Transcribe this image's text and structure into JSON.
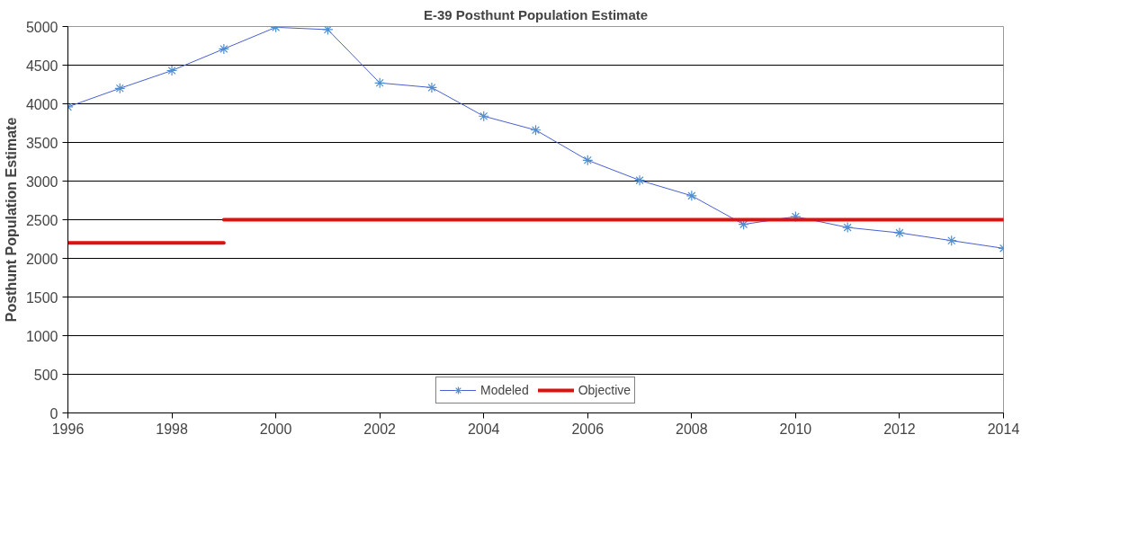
{
  "chart_data": {
    "type": "line",
    "title": "E-39 Posthunt Population Estimate",
    "ylabel": "Posthunt Population Estimate",
    "xlim": [
      1996,
      2014
    ],
    "xticks": [
      1996,
      1998,
      2000,
      2002,
      2004,
      2006,
      2008,
      2010,
      2012,
      2014
    ],
    "ylim": [
      0,
      5000
    ],
    "yticks": [
      0,
      500,
      1000,
      1500,
      2000,
      2500,
      3000,
      3500,
      4000,
      4500,
      5000
    ],
    "grid": "y",
    "legend": "bottom",
    "series": [
      {
        "name": "Modeled",
        "color": "#4a5fd0",
        "marker": "cross",
        "x": [
          1996,
          1997,
          1998,
          1999,
          2000,
          2001,
          2002,
          2003,
          2004,
          2005,
          2006,
          2007,
          2008,
          2009,
          2010,
          2011,
          2012,
          2013,
          2014
        ],
        "values": [
          3960,
          4200,
          4430,
          4710,
          4990,
          4960,
          4270,
          4210,
          3840,
          3660,
          3270,
          3010,
          2810,
          2440,
          2540,
          2400,
          2330,
          2230,
          2130
        ]
      },
      {
        "name": "Objective",
        "color": "#e01010",
        "marker": "none",
        "x": [
          1996,
          1999,
          null,
          1999,
          2014
        ],
        "values": [
          2200,
          2200,
          null,
          2500,
          2500
        ]
      }
    ]
  }
}
